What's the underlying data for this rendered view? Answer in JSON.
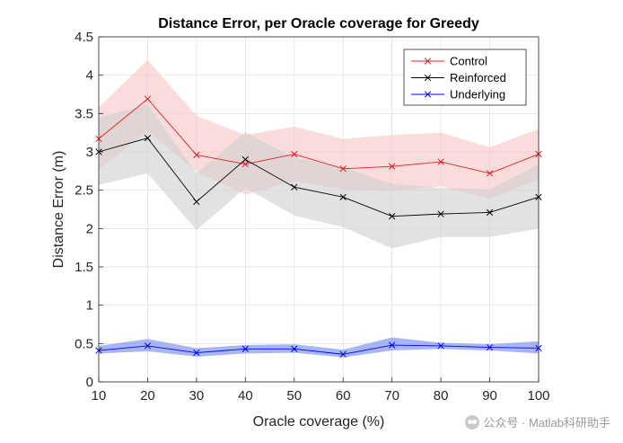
{
  "chart_data": {
    "type": "line",
    "title": "Distance Error, per Oracle coverage for Greedy",
    "xlabel": "Oracle coverage (%)",
    "ylabel": "Distance Error (m)",
    "xlim": [
      10,
      100
    ],
    "ylim": [
      0,
      4.5
    ],
    "grid": true,
    "legend_position": "top-right",
    "x": [
      10,
      20,
      30,
      40,
      50,
      60,
      70,
      80,
      90,
      100
    ],
    "xticks": [
      10,
      20,
      30,
      40,
      50,
      60,
      70,
      80,
      90,
      100
    ],
    "xtick_labels": [
      "10",
      "20",
      "30",
      "40",
      "50",
      "60",
      "70",
      "80",
      "90",
      "100"
    ],
    "yticks": [
      0,
      0.5,
      1,
      1.5,
      2,
      2.5,
      3,
      3.5,
      4,
      4.5
    ],
    "ytick_labels": [
      "0",
      "0.5",
      "1",
      "1.5",
      "2",
      "2.5",
      "3",
      "3.5",
      "4",
      "4.5"
    ],
    "series": [
      {
        "name": "Control",
        "color": "#e02020",
        "band_color": "#f7c4c4",
        "values": [
          3.17,
          3.69,
          2.96,
          2.84,
          2.97,
          2.78,
          2.81,
          2.87,
          2.72,
          2.97
        ],
        "upper": [
          3.58,
          4.2,
          3.47,
          3.22,
          3.33,
          3.17,
          3.22,
          3.25,
          3.06,
          3.3
        ],
        "lower": [
          2.77,
          3.27,
          2.74,
          2.44,
          2.62,
          2.51,
          2.49,
          2.55,
          2.39,
          2.64
        ]
      },
      {
        "name": "Reinforced",
        "color": "#000000",
        "band_color": "#cfcfcf",
        "values": [
          3.0,
          3.18,
          2.35,
          2.9,
          2.54,
          2.41,
          2.16,
          2.19,
          2.21,
          2.41
        ],
        "upper": [
          3.44,
          3.62,
          2.72,
          3.26,
          2.92,
          2.8,
          2.58,
          2.53,
          2.51,
          2.84
        ],
        "lower": [
          2.57,
          2.72,
          1.98,
          2.53,
          2.17,
          2.02,
          1.74,
          1.89,
          1.89,
          2.0
        ]
      },
      {
        "name": "Underlying",
        "color": "#0000ff",
        "band_color": "#6e86f0",
        "values": [
          0.41,
          0.47,
          0.38,
          0.43,
          0.43,
          0.36,
          0.48,
          0.47,
          0.45,
          0.44
        ],
        "upper": [
          0.47,
          0.56,
          0.44,
          0.48,
          0.49,
          0.42,
          0.58,
          0.51,
          0.49,
          0.53
        ],
        "lower": [
          0.37,
          0.4,
          0.33,
          0.37,
          0.38,
          0.32,
          0.41,
          0.43,
          0.41,
          0.37
        ]
      }
    ]
  },
  "watermark": {
    "text": "公众号 · Matlab科研助手",
    "icon": "wechat-icon"
  }
}
